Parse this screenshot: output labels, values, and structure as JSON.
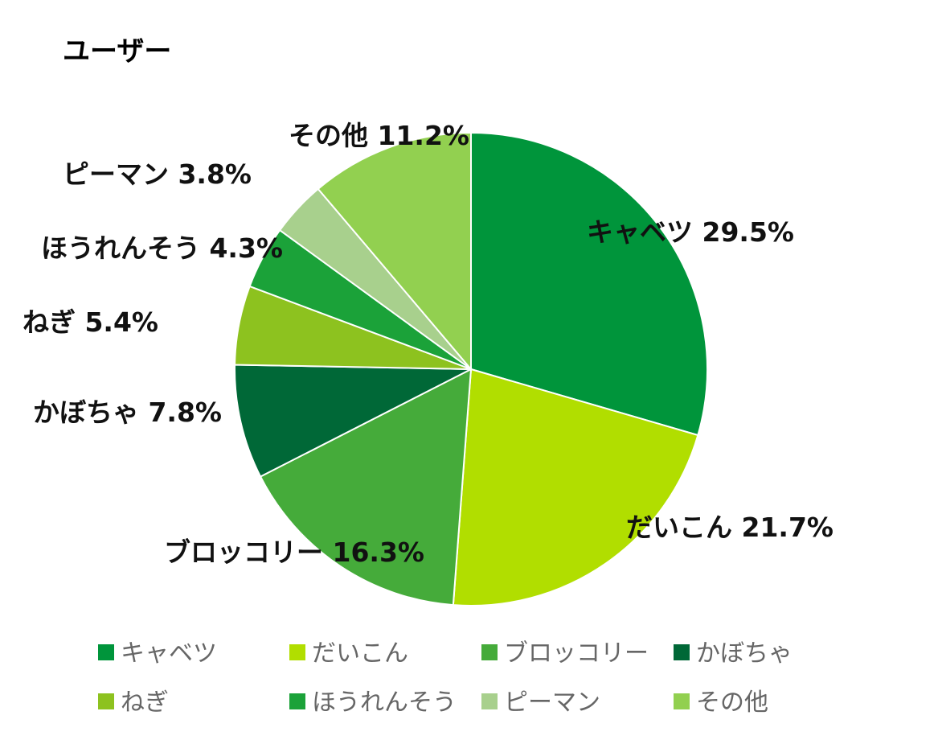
{
  "chart_data": {
    "type": "pie",
    "title": "ユーザー",
    "slices": [
      {
        "name": "キャベツ",
        "value": 29.5,
        "label": "キャベツ 29.5%",
        "color": "#00953B"
      },
      {
        "name": "だいこん",
        "value": 21.7,
        "label": "だいこん 21.7%",
        "color": "#B1DE00"
      },
      {
        "name": "ブロッコリー",
        "value": 16.3,
        "label": "ブロッコリー 16.3%",
        "color": "#45AB3A"
      },
      {
        "name": "かぼちゃ",
        "value": 7.8,
        "label": "かぼちゃ 7.8%",
        "color": "#006837"
      },
      {
        "name": "ねぎ",
        "value": 5.4,
        "label": "ねぎ 5.4%",
        "color": "#8DC21F"
      },
      {
        "name": "ほうれんそう",
        "value": 4.3,
        "label": "ほうれんそう 4.3%",
        "color": "#1BA239"
      },
      {
        "name": "ピーマン",
        "value": 3.8,
        "label": "ピーマン 3.8%",
        "color": "#A8D08D"
      },
      {
        "name": "その他",
        "value": 11.2,
        "label": "その他 11.2%",
        "color": "#92D050"
      }
    ],
    "start_angle": "12 o'clock",
    "direction": "clockwise",
    "legend_position": "bottom"
  }
}
